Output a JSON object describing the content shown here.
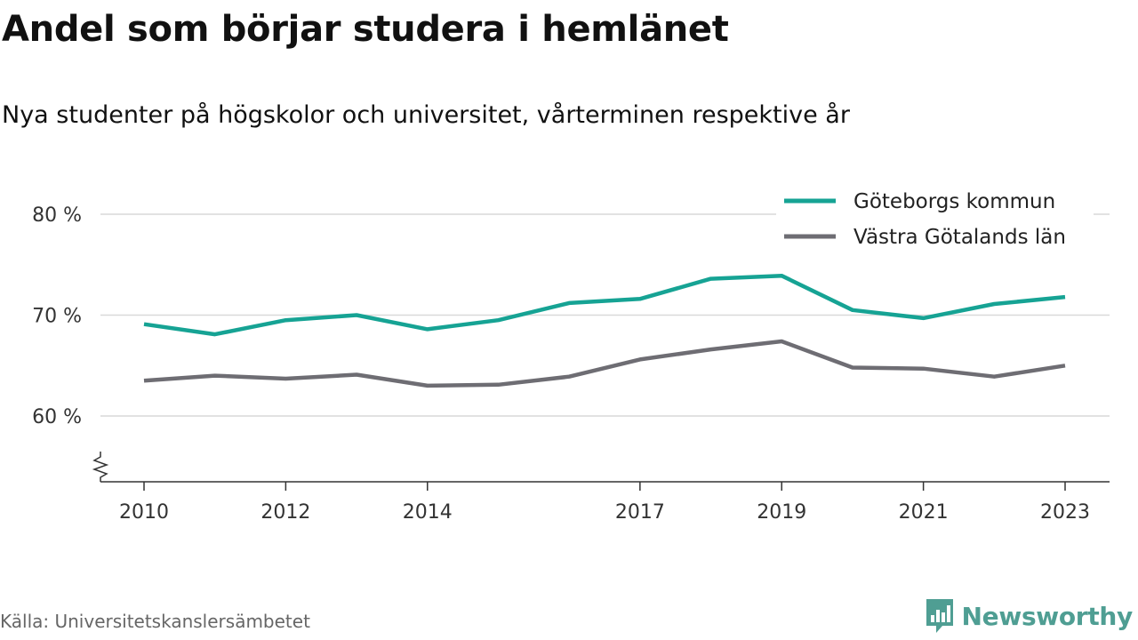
{
  "header": {
    "title": "Andel som börjar studera i hemlänet",
    "subtitle": "Nya studenter på högskolor och universitet, vårterminen respektive år"
  },
  "footer": {
    "source": "Källa: Universitetskanslersämbetet",
    "brand": "Newsworthy",
    "brand_icon": "newsworthy-logo-icon",
    "brand_color": "#4f9e93"
  },
  "chart_data": {
    "type": "line",
    "x": [
      2010,
      2011,
      2012,
      2013,
      2014,
      2015,
      2016,
      2017,
      2018,
      2019,
      2020,
      2021,
      2022,
      2023
    ],
    "xticks": [
      "2010",
      "2012",
      "2014",
      "2017",
      "2019",
      "2021",
      "2023"
    ],
    "yticks": [
      "60 %",
      "70 %",
      "80 %"
    ],
    "ytick_values": [
      60,
      70,
      80
    ],
    "ylim": [
      53.5,
      80
    ],
    "axis_break": true,
    "grid": true,
    "legend_position": "top-right",
    "series": [
      {
        "name": "Göteborgs kommun",
        "color": "#16a394",
        "values": [
          69.1,
          68.1,
          69.5,
          70.0,
          68.6,
          69.5,
          71.2,
          71.6,
          73.6,
          73.9,
          70.5,
          69.7,
          71.1,
          71.8
        ]
      },
      {
        "name": "Västra Götalands län",
        "color": "#6e6d73",
        "values": [
          63.5,
          64.0,
          63.7,
          64.1,
          63.0,
          63.1,
          63.9,
          65.6,
          66.6,
          67.4,
          64.8,
          64.7,
          63.9,
          65.0
        ]
      }
    ]
  }
}
